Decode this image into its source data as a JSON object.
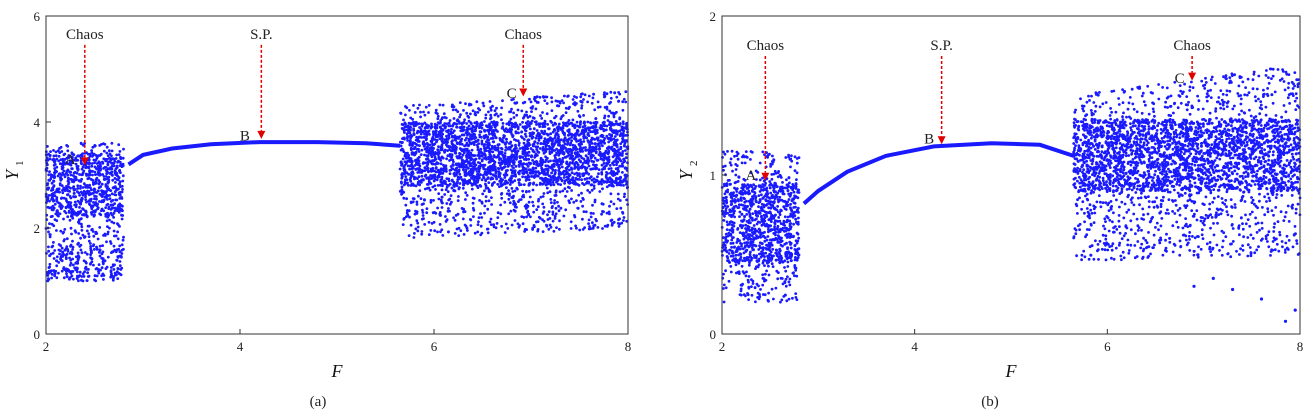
{
  "chart_data": [
    {
      "type": "scatter",
      "panel_label": "(a)",
      "xlabel": "F",
      "ylabel_main": "Y",
      "ylabel_sub": "1",
      "xlim": [
        2,
        8
      ],
      "ylim": [
        0,
        6
      ],
      "xticks": [
        2,
        4,
        6,
        8
      ],
      "yticks": [
        0,
        2,
        4,
        6
      ],
      "grid": false,
      "color": "#1a1aff",
      "regimes": [
        {
          "x_range": [
            2.0,
            2.8
          ],
          "kind": "chaos",
          "y_range": [
            1.0,
            3.6
          ],
          "dense_range": [
            2.2,
            3.4
          ],
          "sparse_band": [
            1.0,
            1.6
          ]
        },
        {
          "x_range": [
            2.85,
            5.65
          ],
          "kind": "single-period",
          "curve": [
            [
              2.85,
              3.2
            ],
            [
              3.0,
              3.38
            ],
            [
              3.3,
              3.5
            ],
            [
              3.7,
              3.58
            ],
            [
              4.2,
              3.62
            ],
            [
              4.8,
              3.62
            ],
            [
              5.3,
              3.6
            ],
            [
              5.65,
              3.55
            ]
          ]
        },
        {
          "x_range": [
            5.65,
            8.0
          ],
          "kind": "chaos",
          "y_range_start": [
            1.8,
            4.3
          ],
          "y_range_end": [
            2.0,
            4.6
          ],
          "dense_range": [
            2.8,
            4.0
          ]
        }
      ],
      "annotations": [
        {
          "label": "Chaos",
          "x": 2.4,
          "text_y": 5.7,
          "arrow_tip_y": 3.2,
          "letter": "A",
          "letter_x": 2.25,
          "letter_y": 3.3
        },
        {
          "label": "S.P.",
          "x": 4.22,
          "text_y": 5.7,
          "arrow_tip_y": 3.7,
          "letter": "B",
          "letter_x": 4.05,
          "letter_y": 3.75
        },
        {
          "label": "Chaos",
          "x": 6.92,
          "text_y": 5.7,
          "arrow_tip_y": 4.5,
          "letter": "C",
          "letter_x": 6.8,
          "letter_y": 4.55
        }
      ]
    },
    {
      "type": "scatter",
      "panel_label": "(b)",
      "xlabel": "F",
      "ylabel_main": "Y",
      "ylabel_sub": "2",
      "xlim": [
        2,
        8
      ],
      "ylim": [
        0,
        2
      ],
      "xticks": [
        2,
        4,
        6,
        8
      ],
      "yticks": [
        0,
        1,
        2
      ],
      "grid": false,
      "color": "#1a1aff",
      "regimes": [
        {
          "x_range": [
            2.0,
            2.8
          ],
          "kind": "chaos",
          "y_range": [
            0.2,
            1.15
          ],
          "dense_range": [
            0.45,
            0.95
          ]
        },
        {
          "x_range": [
            2.85,
            5.65
          ],
          "kind": "single-period",
          "curve": [
            [
              2.85,
              0.82
            ],
            [
              3.0,
              0.9
            ],
            [
              3.3,
              1.02
            ],
            [
              3.7,
              1.12
            ],
            [
              4.2,
              1.18
            ],
            [
              4.8,
              1.2
            ],
            [
              5.3,
              1.19
            ],
            [
              5.65,
              1.12
            ]
          ]
        },
        {
          "x_range": [
            5.65,
            8.0
          ],
          "kind": "chaos",
          "y_range_start": [
            0.45,
            1.5
          ],
          "y_range_end": [
            0.5,
            1.7
          ],
          "dense_range": [
            0.9,
            1.35
          ],
          "outliers": [
            [
              6.9,
              0.3
            ],
            [
              7.1,
              0.35
            ],
            [
              7.3,
              0.28
            ],
            [
              7.6,
              0.22
            ],
            [
              7.85,
              0.08
            ],
            [
              7.95,
              0.15
            ]
          ]
        }
      ],
      "annotations": [
        {
          "label": "Chaos",
          "x": 2.45,
          "text_y": 1.83,
          "arrow_tip_y": 0.97,
          "letter": "A",
          "letter_x": 2.3,
          "letter_y": 1.0
        },
        {
          "label": "S.P.",
          "x": 4.28,
          "text_y": 1.83,
          "arrow_tip_y": 1.2,
          "letter": "B",
          "letter_x": 4.15,
          "letter_y": 1.23
        },
        {
          "label": "Chaos",
          "x": 6.88,
          "text_y": 1.83,
          "arrow_tip_y": 1.6,
          "letter": "C",
          "letter_x": 6.75,
          "letter_y": 1.61
        }
      ]
    }
  ]
}
